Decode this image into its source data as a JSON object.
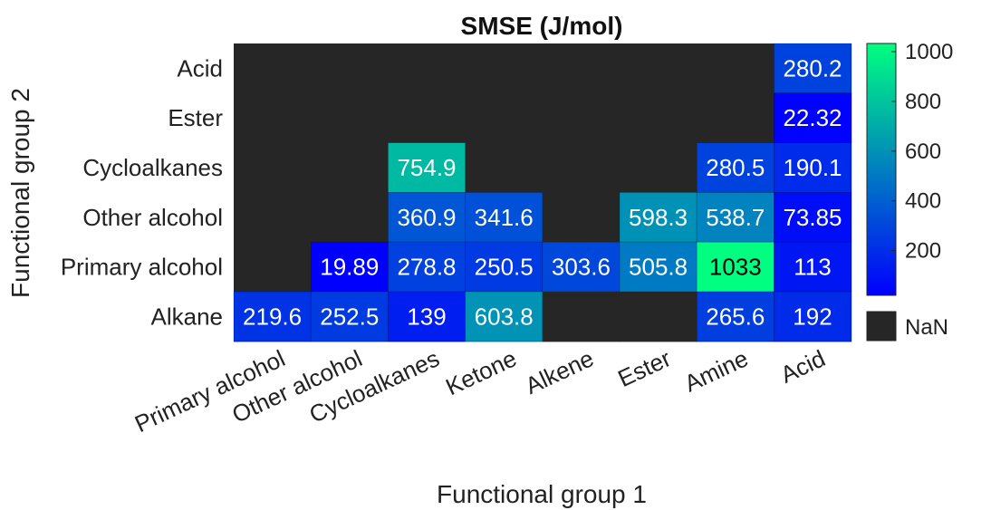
{
  "chart_data": {
    "type": "heatmap",
    "title": "SMSE (J/mol)",
    "xlabel": "Functional group 1",
    "ylabel": "Functional group 2",
    "x_categories": [
      "Primary alcohol",
      "Other alcohol",
      "Cycloalkanes",
      "Ketone",
      "Alkene",
      "Ester",
      "Amine",
      "Acid"
    ],
    "y_categories": [
      "Acid",
      "Ester",
      "Cycloalkanes",
      "Other alcohol",
      "Primary alcohol",
      "Alkane"
    ],
    "values": [
      [
        null,
        null,
        null,
        null,
        null,
        null,
        null,
        280.2
      ],
      [
        null,
        null,
        null,
        null,
        null,
        null,
        null,
        22.32
      ],
      [
        null,
        null,
        754.9,
        null,
        null,
        null,
        280.5,
        190.1
      ],
      [
        null,
        null,
        360.9,
        341.6,
        null,
        598.3,
        538.7,
        73.85
      ],
      [
        null,
        19.89,
        278.8,
        250.5,
        303.6,
        505.8,
        1033,
        113
      ],
      [
        219.6,
        252.5,
        139,
        603.8,
        null,
        null,
        265.6,
        192
      ]
    ],
    "labels": [
      [
        "",
        "",
        "",
        "",
        "",
        "",
        "",
        "280.2"
      ],
      [
        "",
        "",
        "",
        "",
        "",
        "",
        "",
        "22.32"
      ],
      [
        "",
        "",
        "754.9",
        "",
        "",
        "",
        "280.5",
        "190.1"
      ],
      [
        "",
        "",
        "360.9",
        "341.6",
        "",
        "598.3",
        "538.7",
        "73.85"
      ],
      [
        "",
        "19.89",
        "278.8",
        "250.5",
        "303.6",
        "505.8",
        "1033",
        "113"
      ],
      [
        "219.6",
        "252.5",
        "139",
        "603.8",
        "",
        "",
        "265.6",
        "192"
      ]
    ],
    "colorbar": {
      "min": 19.89,
      "max": 1033,
      "ticks": [
        200,
        400,
        600,
        800,
        1000
      ],
      "tick_labels": [
        "200",
        "400",
        "600",
        "800",
        "1000"
      ],
      "colormap": [
        "#0000ff",
        "#00ff80"
      ]
    },
    "nan_label": "NaN",
    "nan_color": "#262626"
  }
}
